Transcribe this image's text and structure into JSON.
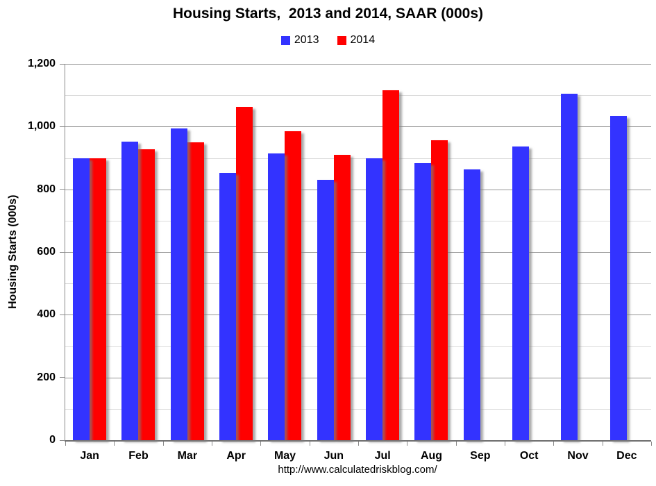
{
  "page": {
    "title": "Housing Starts,  2013 and 2014, SAAR (000s)",
    "footer_url": "http://www.calculatedriskblog.com/"
  },
  "legend": [
    {
      "label": "2013",
      "color": "#3333FF"
    },
    {
      "label": "2014",
      "color": "#FF0000"
    }
  ],
  "colors": {
    "bar_2013": "#3333FF",
    "bar_2014": "#FF0000",
    "major_gridline": "#949494",
    "minor_gridline": "#DADADA",
    "axis_line": "#8A8A8A",
    "text": "#000000",
    "background": "#FFFFFF"
  },
  "chart_data": {
    "type": "bar",
    "title": "Housing Starts,  2013 and 2014, SAAR (000s)",
    "xlabel": "",
    "ylabel": "Housing Starts (000s)",
    "ylim": [
      0,
      1200
    ],
    "ytick_major_interval": 200,
    "ytick_minor_interval": 100,
    "ytick_labels": [
      "0",
      "200",
      "400",
      "600",
      "800",
      "1,000",
      "1,200"
    ],
    "grid": true,
    "legend_position": "top-center",
    "categories": [
      "Jan",
      "Feb",
      "Mar",
      "Apr",
      "May",
      "Jun",
      "Jul",
      "Aug",
      "Sep",
      "Oct",
      "Nov",
      "Dec"
    ],
    "series": [
      {
        "name": "2013",
        "color": "#3333FF",
        "values": [
          898,
          952,
          994,
          852,
          915,
          831,
          898,
          883,
          863,
          936,
          1105,
          1034
        ]
      },
      {
        "name": "2014",
        "color": "#FF0000",
        "values": [
          900,
          928,
          950,
          1063,
          985,
          909,
          1117,
          956,
          null,
          null,
          null,
          null
        ]
      }
    ]
  }
}
